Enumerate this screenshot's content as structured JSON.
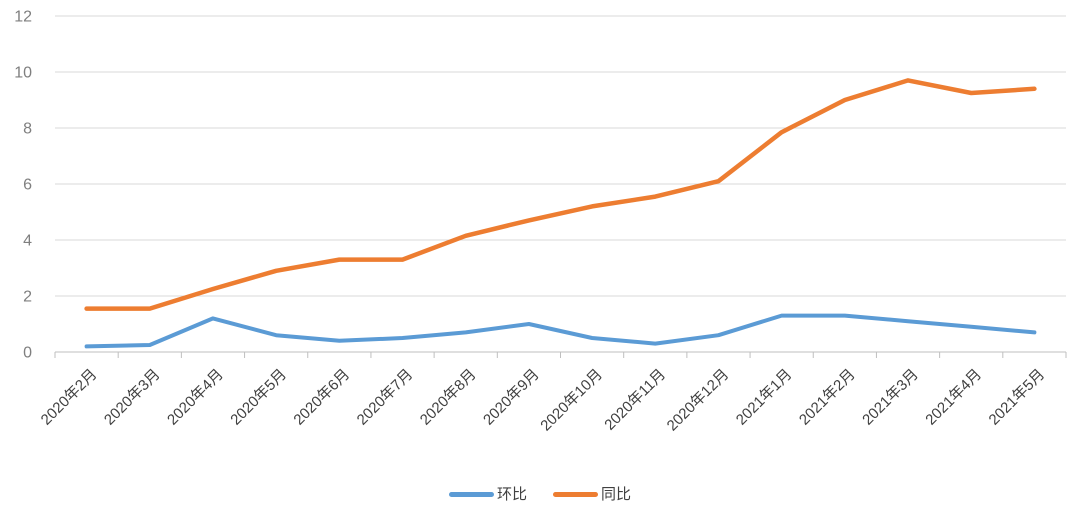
{
  "chart_data": {
    "type": "line",
    "categories": [
      "2020年2月",
      "2020年3月",
      "2020年4月",
      "2020年5月",
      "2020年6月",
      "2020年7月",
      "2020年8月",
      "2020年9月",
      "2020年10月",
      "2020年11月",
      "2020年12月",
      "2021年1月",
      "2021年2月",
      "2021年3月",
      "2021年4月",
      "2021年5月"
    ],
    "series": [
      {
        "name": "环比",
        "color": "#5B9BD5",
        "values": [
          0.2,
          0.25,
          1.2,
          0.6,
          0.4,
          0.5,
          0.7,
          1.0,
          0.5,
          0.3,
          0.6,
          1.3,
          1.3,
          1.1,
          0.9,
          0.7
        ]
      },
      {
        "name": "同比",
        "color": "#ED7D31",
        "values": [
          1.55,
          1.55,
          2.25,
          2.9,
          3.3,
          3.3,
          4.15,
          4.7,
          5.2,
          5.55,
          6.1,
          7.85,
          9.0,
          9.7,
          9.25,
          9.4
        ]
      }
    ],
    "ylim": [
      0,
      12
    ],
    "ytick_step": 2,
    "ytick_labels": [
      "0",
      "2",
      "4",
      "6",
      "8",
      "10",
      "12"
    ],
    "grid": true,
    "legend_position": "bottom"
  },
  "style_colors": {
    "background": "#FFFFFF",
    "gridline": "#D9D9D9",
    "axis_line": "#BFBFBF",
    "tick_mark": "#BFBFBF",
    "y_label_text": "#7F7F7F",
    "x_label_text": "#404040",
    "legend_text": "#404040"
  }
}
